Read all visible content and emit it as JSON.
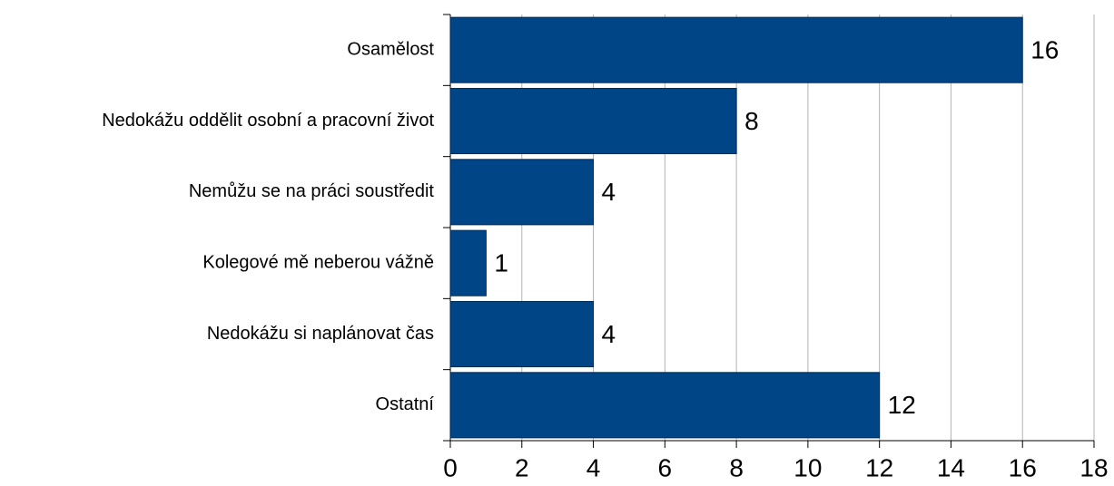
{
  "chart_data": {
    "type": "bar",
    "categories": [
      "Osamělost",
      "Nedokážu oddělit osobní a pracovní život",
      "Nemůžu se na práci soustředit",
      "Kolegové mě neberou vážně",
      "Nedokážu si naplánovat čas",
      "Ostatní"
    ],
    "values": [
      16,
      8,
      4,
      1,
      4,
      12
    ],
    "color": "#004586",
    "xlim": [
      0,
      18
    ],
    "xticks": [
      0,
      2,
      4,
      6,
      8,
      10,
      12,
      14,
      16,
      18
    ],
    "grid": true
  }
}
